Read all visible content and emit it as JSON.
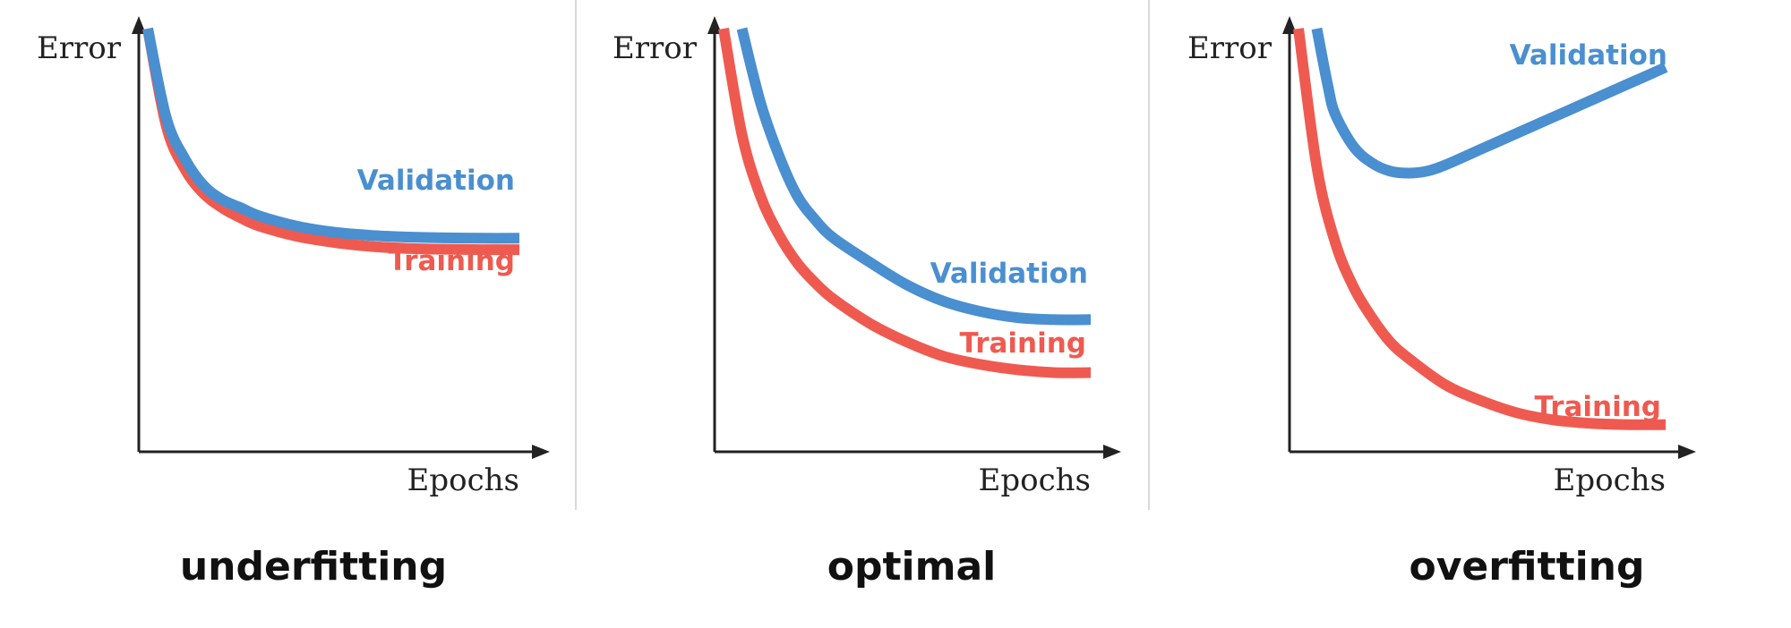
{
  "colors": {
    "validation": "#4a8fd0",
    "training": "#ef5a50",
    "axis": "#222222"
  },
  "chart_data": [
    {
      "type": "line",
      "caption": "underfitting",
      "xlabel": "Epochs",
      "ylabel": "Error",
      "xlim": [
        0,
        10
      ],
      "ylim": [
        0,
        10
      ],
      "series": [
        {
          "name": "Validation",
          "x": [
            0,
            0.5,
            1,
            1.5,
            2,
            2.5,
            3,
            4,
            5,
            6,
            7,
            8,
            9,
            10
          ],
          "values": [
            10,
            7.8,
            6.8,
            6.15,
            5.8,
            5.6,
            5.4,
            5.15,
            5.0,
            4.92,
            4.88,
            4.86,
            4.85,
            4.85
          ]
        },
        {
          "name": "Training",
          "x": [
            0,
            0.5,
            1,
            1.5,
            2,
            2.5,
            3,
            4,
            5,
            6,
            7,
            8,
            9,
            10
          ],
          "values": [
            10,
            7.6,
            6.55,
            5.95,
            5.6,
            5.35,
            5.15,
            4.9,
            4.75,
            4.65,
            4.6,
            4.58,
            4.57,
            4.57
          ]
        }
      ]
    },
    {
      "type": "line",
      "caption": "optimal",
      "xlabel": "Epochs",
      "ylabel": "Error",
      "xlim": [
        0,
        10
      ],
      "ylim": [
        0,
        10
      ],
      "series": [
        {
          "name": "Validation",
          "x": [
            0.5,
            1,
            1.5,
            2,
            2.5,
            3,
            4,
            5,
            6,
            7,
            8,
            9,
            10
          ],
          "values": [
            10,
            8.2,
            6.9,
            5.9,
            5.3,
            4.85,
            4.25,
            3.7,
            3.3,
            3.05,
            2.9,
            2.85,
            2.85
          ]
        },
        {
          "name": "Training",
          "x": [
            0,
            0.5,
            1,
            1.5,
            2,
            2.5,
            3,
            4,
            5,
            6,
            7,
            8,
            9,
            10
          ],
          "values": [
            10,
            7.4,
            5.9,
            4.95,
            4.25,
            3.75,
            3.35,
            2.75,
            2.3,
            1.95,
            1.75,
            1.62,
            1.55,
            1.55
          ]
        }
      ]
    },
    {
      "type": "line",
      "caption": "overfitting",
      "xlabel": "Epochs",
      "ylabel": "Error",
      "xlim": [
        0,
        10
      ],
      "ylim": [
        0,
        10
      ],
      "series": [
        {
          "name": "Validation",
          "x": [
            0.5,
            0.8,
            1,
            1.5,
            2,
            2.5,
            3,
            3.5,
            4,
            5,
            6,
            7,
            8,
            9,
            10
          ],
          "values": [
            10,
            8.6,
            7.9,
            7.1,
            6.7,
            6.5,
            6.45,
            6.5,
            6.65,
            7.05,
            7.45,
            7.85,
            8.25,
            8.65,
            9.05
          ]
        },
        {
          "name": "Training",
          "x": [
            0,
            0.5,
            1,
            1.5,
            2,
            2.5,
            3,
            4,
            5,
            6,
            7,
            8,
            9,
            10
          ],
          "values": [
            10,
            6.6,
            4.75,
            3.65,
            2.9,
            2.3,
            1.9,
            1.25,
            0.85,
            0.55,
            0.38,
            0.3,
            0.27,
            0.27
          ]
        }
      ]
    }
  ]
}
